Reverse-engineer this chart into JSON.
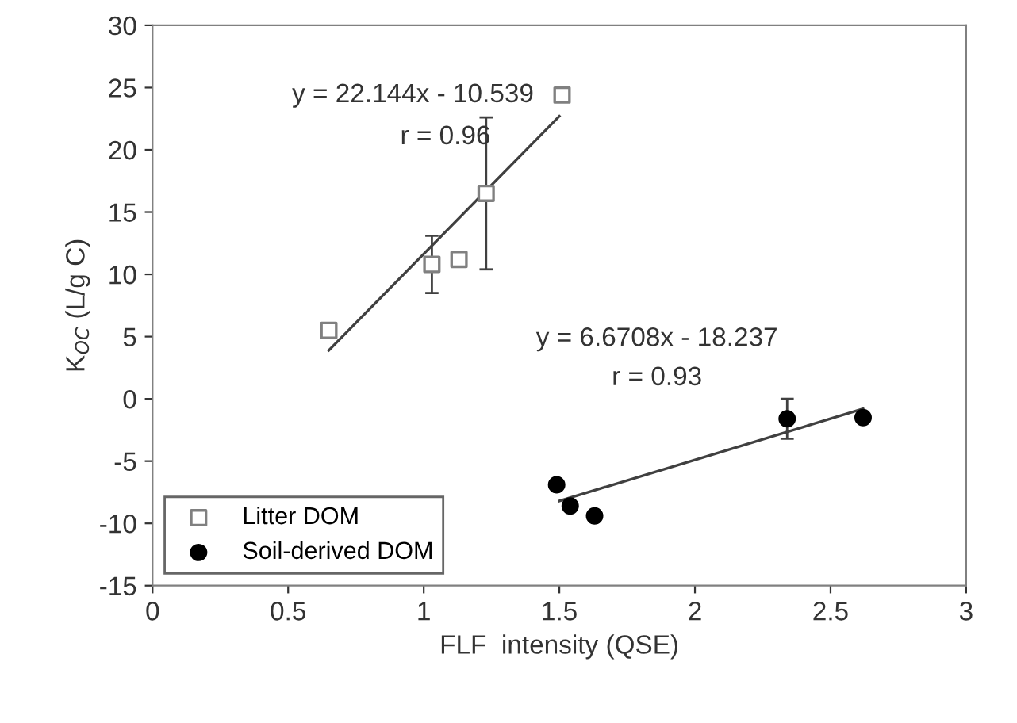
{
  "chart_data": {
    "type": "scatter",
    "xlabel": "FLF  intensity (QSE)",
    "ylabel": "K$_{OC}$ (L/g C)",
    "xlim": [
      0,
      3
    ],
    "xticks": [
      0,
      0.5,
      1,
      1.5,
      2,
      2.5,
      3
    ],
    "ylim": [
      -15,
      30
    ],
    "yticks": [
      -15,
      -10,
      -5,
      0,
      5,
      10,
      15,
      20,
      25,
      30
    ],
    "grid": false,
    "legend": "bottom left",
    "series": [
      {
        "name": "Litter DOM",
        "marker": "square",
        "color": "#808080",
        "x": [
          0.65,
          1.03,
          1.13,
          1.23,
          1.51
        ],
        "values": [
          5.5,
          10.8,
          11.2,
          16.5,
          24.4
        ],
        "errors": [
          null,
          2.3,
          null,
          6.1,
          null
        ]
      },
      {
        "name": "Soil-derived DOM",
        "marker": "circle",
        "color": "#000000",
        "x": [
          1.49,
          1.54,
          1.63,
          2.34,
          2.62
        ],
        "values": [
          -6.9,
          -8.6,
          -9.4,
          -1.6,
          -1.5
        ],
        "errors": [
          null,
          null,
          null,
          1.6,
          null
        ]
      },
      {
        "type": "line",
        "color": "#404040",
        "x": [
          0.65,
          1.5
        ],
        "values": [
          3.9,
          22.7
        ]
      },
      {
        "type": "line",
        "color": "#404040",
        "x": [
          1.5,
          2.62
        ],
        "values": [
          -8.2,
          -0.8
        ]
      }
    ],
    "annotations": [
      "y = 22.144x - 10.539",
      "r = 0.96",
      "y = 6.6708x - 18.237",
      "r = 0.93"
    ]
  }
}
